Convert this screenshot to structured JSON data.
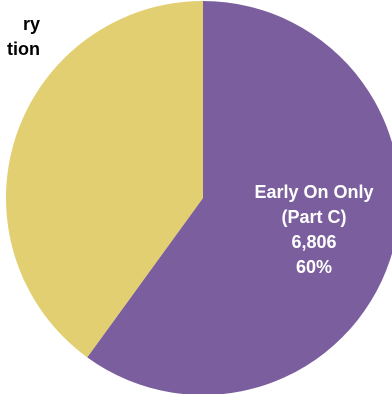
{
  "chart_data": {
    "type": "pie",
    "title": "",
    "slices": [
      {
        "label_lines": [
          "Early On Only",
          "(Part C)",
          "6,806",
          "60%"
        ],
        "value": 6806,
        "percent": 60,
        "color": "#7b5e9e",
        "label_color": "#ffffff"
      },
      {
        "label_lines": [
          "ry",
          "tion"
        ],
        "value": null,
        "percent": 40,
        "color": "#e2cf72",
        "label_color": "#000000"
      }
    ]
  }
}
